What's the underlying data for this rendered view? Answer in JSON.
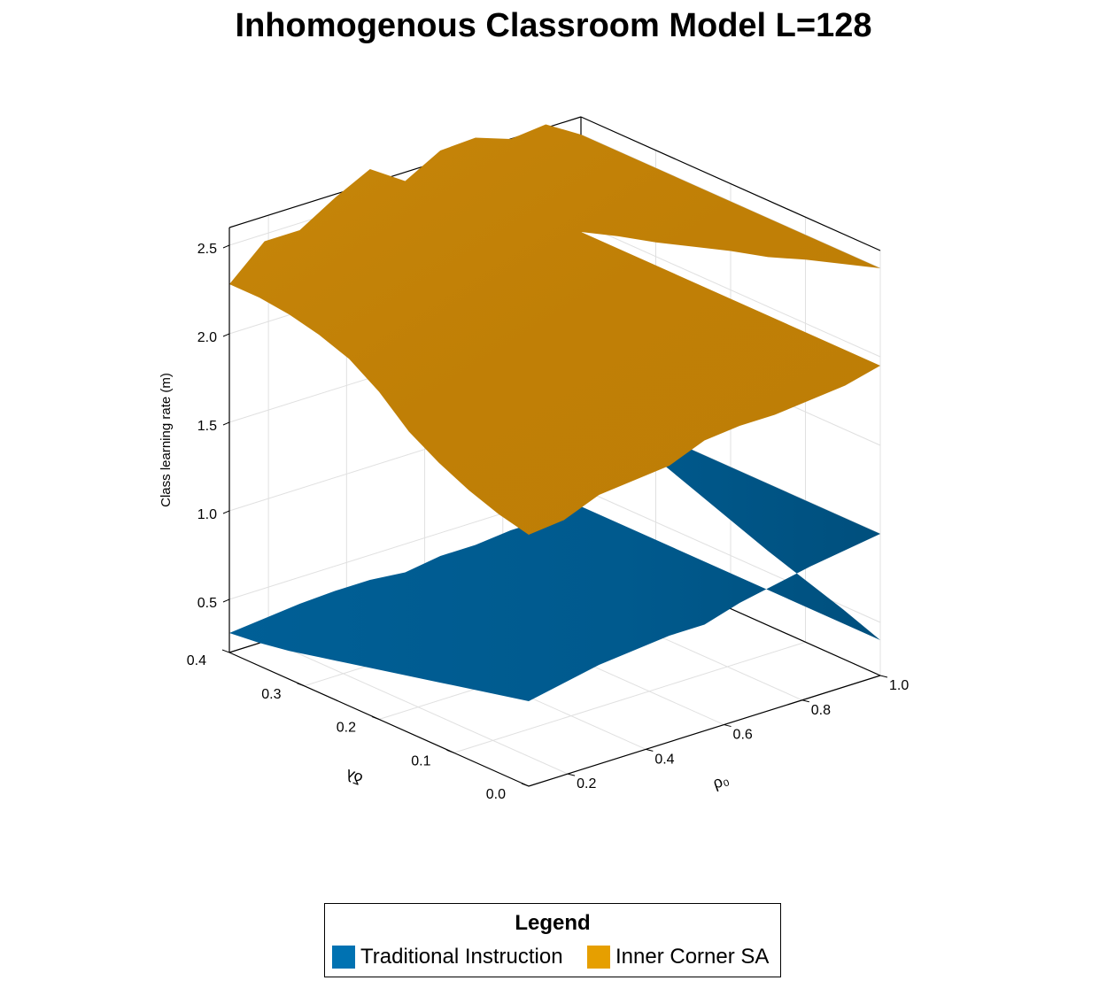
{
  "chart_data": {
    "type": "surface",
    "title": "Inhomogenous Classroom Model L=128",
    "xlabel": "ρ₀",
    "ylabel": "δλ",
    "zlabel": "Class learning rate (m)",
    "xlim": [
      0.1,
      1.0
    ],
    "ylim": [
      0.0,
      0.4
    ],
    "zlim": [
      0.2,
      2.6
    ],
    "x_ticks": [
      "0.2",
      "0.4",
      "0.6",
      "0.8",
      "1.0"
    ],
    "y_ticks": [
      "0.0",
      "0.1",
      "0.2",
      "0.3",
      "0.4"
    ],
    "z_ticks": [
      "0.5",
      "1.0",
      "1.5",
      "2.0",
      "2.5"
    ],
    "grid": true,
    "legend_title": "Legend",
    "legend_position": "bottom",
    "series": [
      {
        "name": "Traditional Instruction",
        "color": "#0072B2",
        "z_at_rho_min_edge": [
          0.31,
          0.33,
          0.36,
          0.4,
          0.44,
          0.48,
          0.52,
          0.56,
          0.6,
          0.64,
          0.68
        ],
        "z_at_dl_max_edge": [
          0.31,
          0.33,
          0.35,
          0.36,
          0.36,
          0.34,
          0.37,
          0.37,
          0.39,
          0.39,
          0.4
        ],
        "z_at_dl_min_edge": [
          0.68,
          0.72,
          0.76,
          0.78,
          0.8,
          0.8,
          0.86,
          0.9,
          0.94,
          0.97,
          1.0
        ],
        "z_at_rho_max_edge": [
          0.4,
          0.48,
          0.55,
          0.62,
          0.7,
          0.78,
          0.86,
          0.93,
          1.0
        ]
      },
      {
        "name": "Inner Corner SA",
        "color": "#E69F00",
        "z_at_rho_min_edge": [
          2.28,
          2.28,
          2.26,
          2.22,
          2.16,
          2.05,
          1.9,
          1.8,
          1.72,
          1.66,
          1.62
        ],
        "z_at_dl_max_edge": [
          2.28,
          2.46,
          2.46,
          2.58,
          2.68,
          2.55,
          2.66,
          2.67,
          2.6,
          2.62,
          2.5
        ],
        "z_at_dl_min_edge": [
          1.62,
          1.64,
          1.72,
          1.74,
          1.76,
          1.84,
          1.86,
          1.86,
          1.88,
          1.9,
          1.95
        ],
        "z_at_rho_max_edge": [
          2.5,
          2.43,
          2.36,
          2.28,
          2.22,
          2.15,
          2.08,
          2.02,
          1.95
        ]
      }
    ]
  }
}
